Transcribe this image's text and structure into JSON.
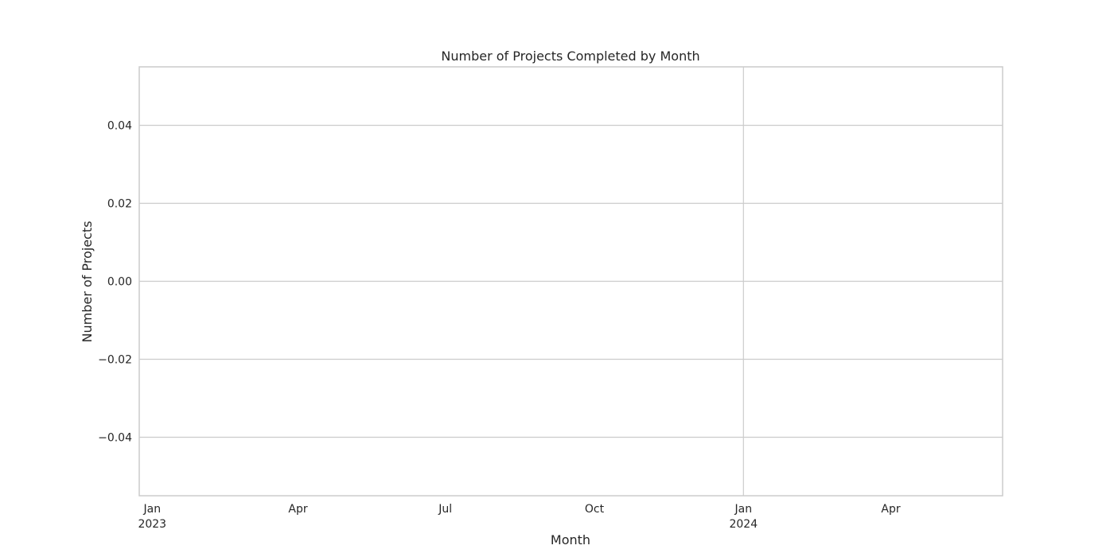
{
  "chart_data": {
    "type": "line",
    "title": "Number of Projects Completed by Month",
    "xlabel": "Month",
    "ylabel": "Number of Projects",
    "x_axis": {
      "type": "date",
      "range": [
        "2022-12-24",
        "2024-06-09"
      ],
      "ticks": [
        {
          "date": "2023-01-01",
          "label": "Jan",
          "sublabel": "2023"
        },
        {
          "date": "2023-04-01",
          "label": "Apr",
          "sublabel": ""
        },
        {
          "date": "2023-07-01",
          "label": "Jul",
          "sublabel": ""
        },
        {
          "date": "2023-10-01",
          "label": "Oct",
          "sublabel": ""
        },
        {
          "date": "2024-01-01",
          "label": "Jan",
          "sublabel": "2024"
        },
        {
          "date": "2024-04-01",
          "label": "Apr",
          "sublabel": ""
        }
      ],
      "gridlines_at": [
        "2024-01-01"
      ]
    },
    "y_axis": {
      "range": [
        -0.055,
        0.055
      ],
      "ticks": [
        {
          "value": -0.04,
          "label": "−0.04"
        },
        {
          "value": -0.02,
          "label": "−0.02"
        },
        {
          "value": 0.0,
          "label": "0.00"
        },
        {
          "value": 0.02,
          "label": "0.02"
        },
        {
          "value": 0.04,
          "label": "0.04"
        }
      ]
    },
    "grid": true,
    "series": [
      {
        "x": [],
        "values": []
      }
    ]
  }
}
